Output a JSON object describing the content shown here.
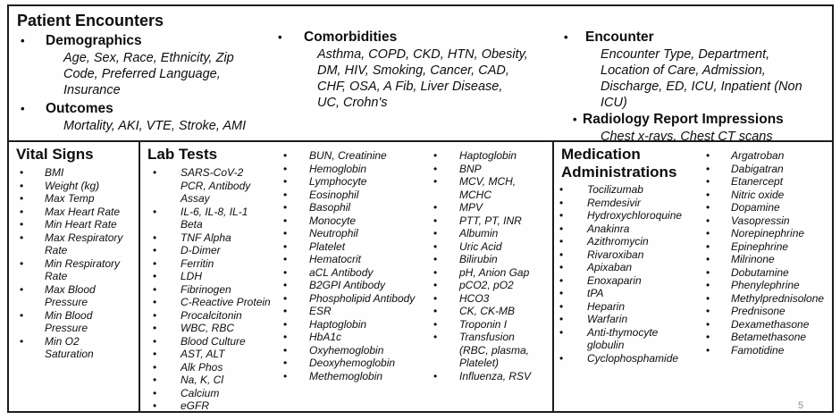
{
  "page": {
    "number": "5"
  },
  "patient_encounters": {
    "title": "Patient Encounters",
    "demographics": {
      "heading": "Demographics",
      "detail": "Age, Sex, Race, Ethnicity, Zip\nCode, Preferred Language,\nInsurance"
    },
    "outcomes": {
      "heading": "Outcomes",
      "detail": "Mortality, AKI, VTE, Stroke, AMI"
    },
    "comorbidities": {
      "heading": "Comorbidities",
      "detail": "Asthma, COPD, CKD, HTN, Obesity,\nDM, HIV, Smoking, Cancer, CAD,\nCHF, OSA, A Fib, Liver Disease,\nUC, Crohn's"
    },
    "encounter": {
      "heading": "Encounter",
      "detail": "Encounter Type, Department,\nLocation of Care, Admission,\nDischarge, ED, ICU, Inpatient (Non\nICU)"
    },
    "radiology": {
      "heading": "Radiology Report Impressions",
      "detail": "Chest x-rays, Chest CT scans"
    }
  },
  "vital_signs": {
    "title": "Vital Signs",
    "items": [
      "BMI",
      "Weight (kg)",
      "Max Temp",
      "Max Heart Rate",
      "Min Heart Rate",
      "Max Respiratory\nRate",
      "Min Respiratory\nRate",
      "Max Blood\nPressure",
      "Min Blood\nPressure",
      "Min O2\nSaturation"
    ]
  },
  "lab_tests": {
    "title": "Lab Tests",
    "column_1": [
      "SARS-CoV-2\nPCR, Antibody\nAssay",
      "IL-6, IL-8, IL-1\nBeta",
      "TNF Alpha",
      "D-Dimer",
      "Ferritin",
      "LDH",
      "Fibrinogen",
      "C-Reactive Protein",
      "Procalcitonin",
      "WBC, RBC",
      "Blood Culture",
      "AST, ALT",
      "Alk Phos",
      "Na, K, Cl",
      "Calcium",
      "eGFR"
    ],
    "column_2": [
      "BUN, Creatinine",
      "Hemoglobin",
      "Lymphocyte",
      "Eosinophil",
      "Basophil",
      "Monocyte",
      "Neutrophil",
      "Platelet",
      "Hematocrit",
      "aCL Antibody",
      "B2GPI Antibody",
      "Phospholipid Antibody",
      "ESR",
      "Haptoglobin",
      "HbA1c",
      "Oxyhemoglobin",
      "Deoxyhemoglobin",
      "Methemoglobin"
    ],
    "column_3": [
      "Haptoglobin",
      "BNP",
      "MCV, MCH,\nMCHC",
      "MPV",
      "PTT, PT, INR",
      "Albumin",
      "Uric Acid",
      "Bilirubin",
      "pH, Anion Gap",
      "pCO2, pO2",
      "HCO3",
      "CK, CK-MB",
      "Troponin I",
      "Transfusion\n(RBC, plasma,\nPlatelet)",
      "Influenza, RSV"
    ]
  },
  "medication_administrations": {
    "title": "Medication Administrations",
    "column_1": [
      "Tocilizumab",
      "Remdesivir",
      "Hydroxychloroquine",
      "Anakinra",
      "Azithromycin",
      "Rivaroxiban",
      "Apixaban",
      "Enoxaparin",
      "tPA",
      "Heparin",
      "Warfarin",
      "Anti-thymocyte\nglobulin",
      "Cyclophosphamide"
    ],
    "column_2": [
      "Argatroban",
      "Dabigatran",
      "Etanercept",
      "Nitric oxide",
      "Dopamine",
      "Vasopressin",
      "Norepinephrine",
      "Epinephrine",
      "Milrinone",
      "Dobutamine",
      "Phenylephrine",
      "Methylprednisolone",
      "Prednisone",
      "Dexamethasone",
      "Betamethasone",
      "Famotidine"
    ]
  }
}
